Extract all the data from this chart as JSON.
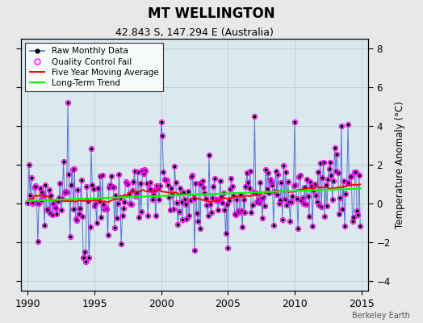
{
  "title": "MT WELLINGTON",
  "subtitle": "42.843 S, 147.294 E (Australia)",
  "ylabel": "Temperature Anomaly (°C)",
  "xlim": [
    1989.5,
    2015.5
  ],
  "ylim": [
    -4.5,
    8.5
  ],
  "yticks": [
    -4,
    -2,
    0,
    2,
    4,
    6,
    8
  ],
  "xticks": [
    1990,
    1995,
    2000,
    2005,
    2010,
    2015
  ],
  "watermark": "Berkeley Earth",
  "fig_bg_color": "#e8e8e8",
  "plot_bg_color": "#dce8f0",
  "seed": 99
}
